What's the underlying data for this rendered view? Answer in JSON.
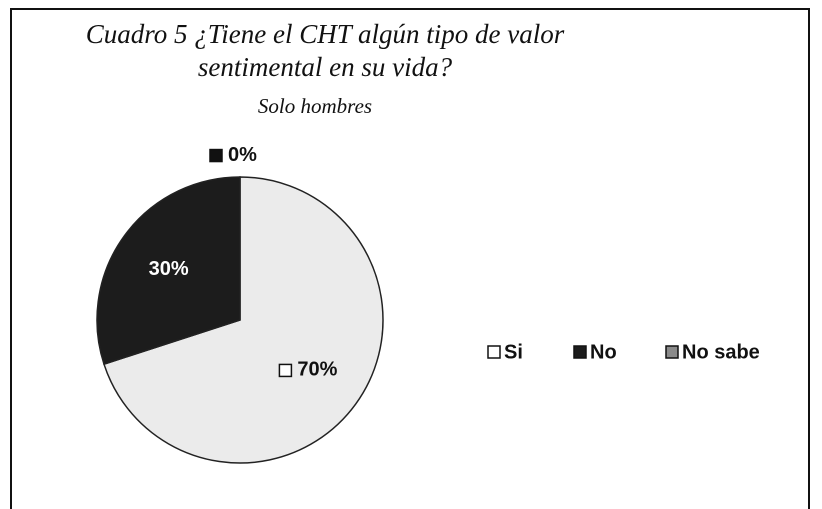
{
  "chart_data": {
    "type": "pie",
    "title": "Cuadro 5 ¿Tiene el CHT algún tipo de valor sentimental en su vida?",
    "subtitle": "Solo hombres",
    "categories": [
      "Si",
      "No",
      "No sabe"
    ],
    "values": [
      70,
      30,
      0
    ],
    "value_labels": [
      "70%",
      "30%",
      "0%"
    ],
    "colors": [
      "#ebebeb",
      "#1c1c1c",
      "#8a8a8a"
    ],
    "legend": "right"
  }
}
